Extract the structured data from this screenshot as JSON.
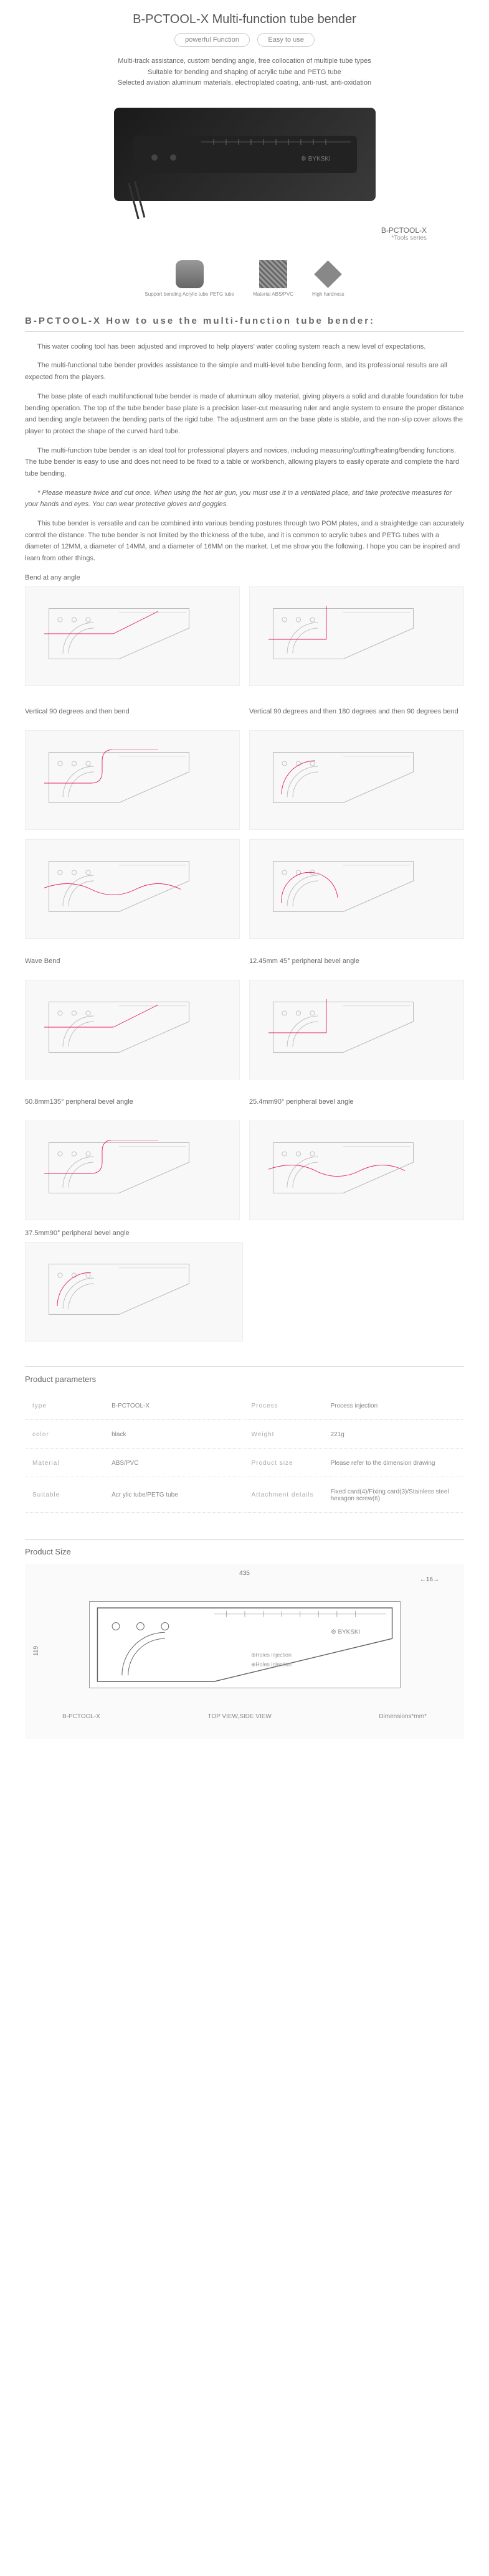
{
  "header": {
    "title": "B-PCTOOL-X Multi-function tube bender",
    "badges": [
      "powerful Function",
      "Easy to use"
    ],
    "features": [
      "Multi-track assistance, custom bending angle, free collocation of multiple tube types",
      "Suitable for bending and shaping of acrylic tube and PETG tube",
      "Selected aviation aluminum materials, electroplated coating, anti-rust, anti-oxidation"
    ]
  },
  "model": {
    "name": "B-PCTOOL-X",
    "series": "*Tools series"
  },
  "icons": [
    {
      "label": "Support bending Acrylic tube PETG tube"
    },
    {
      "label": "Material ABS/PVC"
    },
    {
      "label": "High hardness"
    }
  ],
  "howto": {
    "title": "B-PCTOOL-X How to use the multi-function tube bender:",
    "paragraphs": [
      "This water cooling tool has been adjusted and improved to help players'  water cooling system reach a new level of expectations.",
      "The multi-functional tube bender provides assistance to the simple and multi-level tube bending form, and its professional results are all expected from the players.",
      "The base plate of each multifunctional tube bender is made of aluminum alloy material, giving players a solid and durable foundation for tube bending operation. The top of the tube bender base plate is a precision laser-cut measuring ruler and angle system to ensure the proper distance and bending angle between the bending parts of the rigid tube. The adjustment arm on the base plate is stable, and the non-slip cover allows the player to protect the shape of the curved hard tube.",
      "The multi-function tube bender is an ideal tool for professional players and novices, including measuring/cutting/heating/bending functions. The tube bender is easy to use and does not need to be fixed to a table or workbench, allowing players to easily operate and complete the hard tube bending.",
      "* Please measure twice and cut once. When using the hot air gun, you must use it in a ventilated place, and take protective measures for your hands and eyes. You can wear protective gloves and goggles.",
      "This tube bender is versatile and can be combined into various bending postures through two POM plates, and a straightedge can accurately control the distance. The tube bender is not limited by the thickness of the tube, and it is common to acrylic tubes and PETG tubes with a diameter of 12MM, a diameter of 14MM, and a diameter of 16MM on the market. Let me show you the following. I hope you can be inspired and learn from other things."
    ]
  },
  "sections": [
    {
      "label": "Bend at any angle",
      "cols": 2,
      "rows": 1
    },
    {
      "label": "Vertical 90 degrees and then bend",
      "label2": "Vertical 90 degrees and then 180 degrees and then 90 degrees bend",
      "cols": 2,
      "rows": 2,
      "split": true
    },
    {
      "label": "Wave Bend",
      "label2": "12.45mm 45° peripheral bevel angle",
      "cols": 2,
      "rows": 1,
      "split": true
    },
    {
      "label": "50.8mm135° peripheral bevel angle",
      "label2": "25.4mm90° peripheral bevel angle",
      "cols": 2,
      "rows": 1,
      "split": true
    },
    {
      "label": "37.5mm90° peripheral bevel angle",
      "cols": 1,
      "rows": 1
    }
  ],
  "params": {
    "header": "Product parameters",
    "rows": [
      {
        "k1": "type",
        "v1": "B-PCTOOL-X",
        "k2": "Process",
        "v2": "Process injection"
      },
      {
        "k1": "color",
        "v1": "black",
        "k2": "Weight",
        "v2": "221g"
      },
      {
        "k1": "Material",
        "v1": "ABS/PVC",
        "k2": "Product size",
        "v2": "Please refer to the dimension drawing"
      },
      {
        "k1": "Suitable",
        "v1": "Acr ylic tube/PETG tube",
        "k2": "Attachment details",
        "v2": "Fixed card(4)/Fixing card(3)/Stainless steel hexagon screw(6)"
      }
    ]
  },
  "size": {
    "header": "Product Size",
    "dims": {
      "width": "435",
      "height": "119",
      "depth": "16"
    },
    "model": "B-PCTOOL-X",
    "view": "TOP VIEW,SIDE VIEW",
    "unit": "Dimensions*mm*"
  },
  "colors": {
    "text": "#666666",
    "text_light": "#888888",
    "border": "#dddddd",
    "bg_diagram": "#f8f8f8",
    "accent": "#e91e63"
  }
}
